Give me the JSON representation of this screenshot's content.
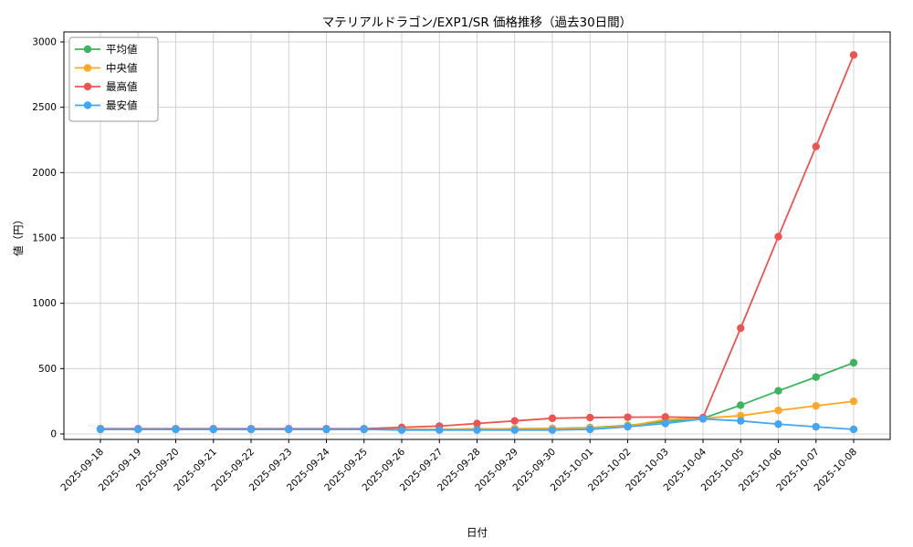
{
  "chart_data": {
    "type": "line",
    "title": "マテリアルドラゴン/EXP1/SR 価格推移（過去30日間）",
    "xlabel": "日付",
    "ylabel": "値（円）",
    "ylim": [
      0,
      3000
    ],
    "yticks": [
      0,
      500,
      1000,
      1500,
      2000,
      2500,
      3000
    ],
    "grid": true,
    "legend_position": "upper-left",
    "x": [
      "2025-09-18",
      "2025-09-19",
      "2025-09-20",
      "2025-09-21",
      "2025-09-22",
      "2025-09-23",
      "2025-09-24",
      "2025-09-25",
      "2025-09-26",
      "2025-09-27",
      "2025-09-28",
      "2025-09-29",
      "2025-09-30",
      "2025-10-01",
      "2025-10-02",
      "2025-10-03",
      "2025-10-04",
      "2025-10-05",
      "2025-10-06",
      "2025-10-07",
      "2025-10-08"
    ],
    "series": [
      {
        "name": "平均値",
        "color": "#3cb55e",
        "values": [
          35,
          35,
          35,
          35,
          35,
          35,
          35,
          35,
          35,
          36,
          38,
          40,
          42,
          48,
          65,
          95,
          120,
          220,
          330,
          435,
          545
        ]
      },
      {
        "name": "中央値",
        "color": "#ffa726",
        "values": [
          35,
          35,
          35,
          35,
          35,
          35,
          35,
          35,
          35,
          35,
          37,
          40,
          42,
          45,
          60,
          110,
          120,
          140,
          180,
          215,
          250
        ]
      },
      {
        "name": "最高値",
        "color": "#ef5350",
        "values": [
          40,
          40,
          40,
          40,
          40,
          40,
          40,
          40,
          50,
          60,
          80,
          100,
          120,
          125,
          128,
          130,
          125,
          810,
          1510,
          2200,
          2900
        ]
      },
      {
        "name": "最安値",
        "color": "#42a5f5",
        "values": [
          35,
          35,
          35,
          35,
          35,
          35,
          35,
          35,
          30,
          30,
          30,
          30,
          30,
          35,
          55,
          80,
          115,
          100,
          75,
          55,
          35
        ]
      }
    ]
  }
}
